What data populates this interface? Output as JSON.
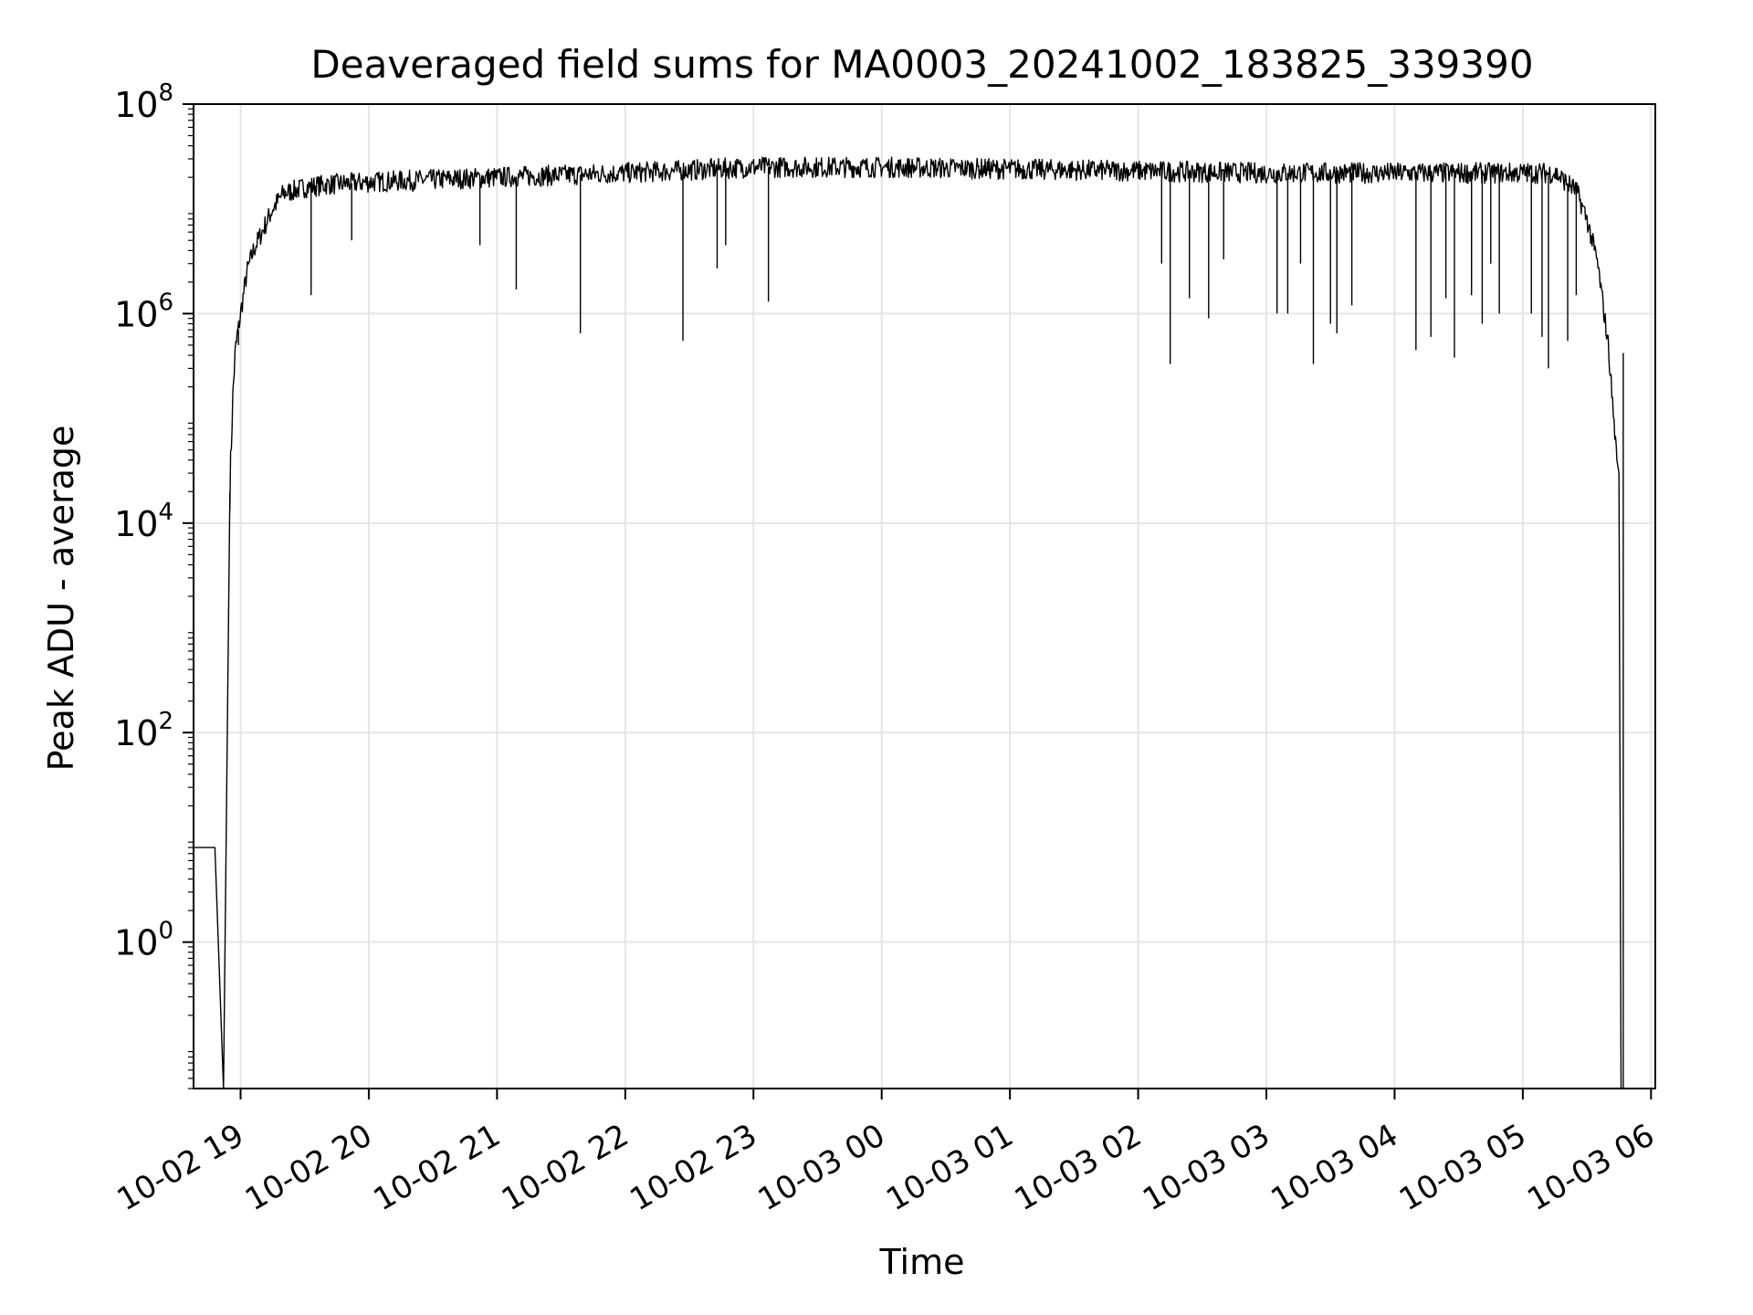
{
  "chart_data": {
    "type": "line",
    "title": "Deaveraged field sums for MA0003_20241002_183825_339390",
    "xlabel": "Time",
    "ylabel": "Peak ADU - average",
    "y_scale": "log",
    "ylim": [
      0.04,
      100000000
    ],
    "xlim": [
      "2024-10-02 18:38",
      "2024-10-03 06:02"
    ],
    "grid": true,
    "line_color": "#000000",
    "grid_color": "#e5e5e5",
    "x_ticks": [
      "10-02 19",
      "10-02 20",
      "10-02 21",
      "10-02 22",
      "10-02 23",
      "10-03 00",
      "10-03 01",
      "10-03 02",
      "10-03 03",
      "10-03 04",
      "10-03 05",
      "10-03 06"
    ],
    "y_ticks": [
      {
        "base": "10",
        "exp": "0",
        "value": 1
      },
      {
        "base": "10",
        "exp": "2",
        "value": 100
      },
      {
        "base": "10",
        "exp": "4",
        "value": 10000
      },
      {
        "base": "10",
        "exp": "6",
        "value": 1000000
      },
      {
        "base": "10",
        "exp": "8",
        "value": 100000000
      }
    ],
    "series": [
      {
        "x": [
          "2024-10-02 18:38",
          "2024-10-02 18:48",
          "2024-10-02 18:52",
          "2024-10-02 18:55",
          "2024-10-02 18:56",
          "2024-10-02 18:57",
          "2024-10-02 18:58",
          "2024-10-02 19:00",
          "2024-10-02 19:03",
          "2024-10-02 19:06",
          "2024-10-02 19:10",
          "2024-10-02 19:15",
          "2024-10-02 19:20",
          "2024-10-02 19:30",
          "2024-10-02 19:40",
          "2024-10-02 20:00",
          "2024-10-02 21:00",
          "2024-10-02 22:00",
          "2024-10-02 23:00",
          "2024-10-03 00:00",
          "2024-10-03 01:00",
          "2024-10-03 02:00",
          "2024-10-03 03:00",
          "2024-10-03 04:00",
          "2024-10-03 05:00",
          "2024-10-03 05:15",
          "2024-10-03 05:25",
          "2024-10-03 05:30",
          "2024-10-03 05:35",
          "2024-10-03 05:40",
          "2024-10-03 05:44",
          "2024-10-03 05:45",
          "2024-10-03 05:46"
        ],
        "y": [
          8,
          8,
          0.04,
          20000,
          100000,
          300000,
          500000,
          1000000,
          2500000,
          4000000,
          6000000,
          10000000,
          14000000,
          16000000,
          17000000,
          18000000,
          20000000,
          22000000,
          25000000,
          25000000,
          24000000,
          23000000,
          22000000,
          22000000,
          22000000,
          22000000,
          15000000,
          8000000,
          3000000,
          500000,
          40000,
          30000,
          0.04
        ]
      }
    ],
    "dips": [
      {
        "x": "2024-10-02 19:33",
        "y": 1500000
      },
      {
        "x": "2024-10-02 19:52",
        "y": 5000000
      },
      {
        "x": "2024-10-02 20:52",
        "y": 4500000
      },
      {
        "x": "2024-10-02 21:09",
        "y": 1700000
      },
      {
        "x": "2024-10-02 21:39",
        "y": 650000
      },
      {
        "x": "2024-10-02 22:27",
        "y": 550000
      },
      {
        "x": "2024-10-02 22:43",
        "y": 2700000
      },
      {
        "x": "2024-10-02 22:47",
        "y": 4500000
      },
      {
        "x": "2024-10-02 23:07",
        "y": 1300000
      },
      {
        "x": "2024-10-03 02:11",
        "y": 3000000
      },
      {
        "x": "2024-10-03 02:15",
        "y": 330000
      },
      {
        "x": "2024-10-03 02:24",
        "y": 1400000
      },
      {
        "x": "2024-10-03 02:33",
        "y": 900000
      },
      {
        "x": "2024-10-03 02:40",
        "y": 3300000
      },
      {
        "x": "2024-10-03 03:05",
        "y": 1000000
      },
      {
        "x": "2024-10-03 03:10",
        "y": 1000000
      },
      {
        "x": "2024-10-03 03:16",
        "y": 3000000
      },
      {
        "x": "2024-10-03 03:22",
        "y": 330000
      },
      {
        "x": "2024-10-03 03:30",
        "y": 800000
      },
      {
        "x": "2024-10-03 03:33",
        "y": 650000
      },
      {
        "x": "2024-10-03 03:40",
        "y": 1200000
      },
      {
        "x": "2024-10-03 04:10",
        "y": 450000
      },
      {
        "x": "2024-10-03 04:17",
        "y": 600000
      },
      {
        "x": "2024-10-03 04:24",
        "y": 1400000
      },
      {
        "x": "2024-10-03 04:28",
        "y": 380000
      },
      {
        "x": "2024-10-03 04:36",
        "y": 1500000
      },
      {
        "x": "2024-10-03 04:41",
        "y": 800000
      },
      {
        "x": "2024-10-03 04:45",
        "y": 3000000
      },
      {
        "x": "2024-10-03 04:49",
        "y": 1000000
      },
      {
        "x": "2024-10-03 05:04",
        "y": 1000000
      },
      {
        "x": "2024-10-03 05:09",
        "y": 600000
      },
      {
        "x": "2024-10-03 05:12",
        "y": 300000
      },
      {
        "x": "2024-10-03 05:21",
        "y": 550000
      },
      {
        "x": "2024-10-03 05:25",
        "y": 1500000
      }
    ],
    "spikes": [
      {
        "x": "2024-10-02 18:59",
        "y": 500000
      },
      {
        "x": "2024-10-03 05:47",
        "y": 420000
      }
    ]
  }
}
